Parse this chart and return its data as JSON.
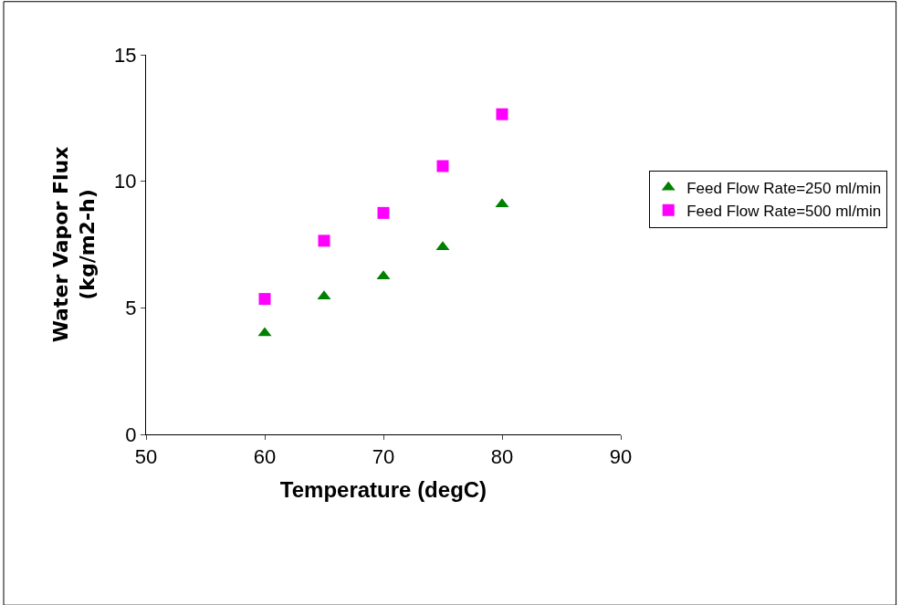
{
  "chart_data": {
    "type": "scatter",
    "xlabel": "Temperature (degC)",
    "ylabel": "Water Vapor Flux\n(kg/m2-h)",
    "x": [
      60,
      65,
      70,
      75,
      80
    ],
    "series": [
      {
        "name": "Feed Flow Rate=250 ml/min",
        "color": "#008000",
        "marker": "triangle",
        "values": [
          4.0,
          5.45,
          6.25,
          7.4,
          9.1
        ]
      },
      {
        "name": "Feed Flow Rate=500 ml/min",
        "color": "#ff00ff",
        "marker": "square",
        "values": [
          5.35,
          7.65,
          8.75,
          10.6,
          12.65
        ]
      }
    ],
    "xlim": [
      50,
      90
    ],
    "xticks": [
      50,
      60,
      70,
      80,
      90
    ],
    "ylim": [
      0,
      15
    ],
    "yticks": [
      0,
      5,
      10,
      15
    ],
    "legend": "right"
  }
}
